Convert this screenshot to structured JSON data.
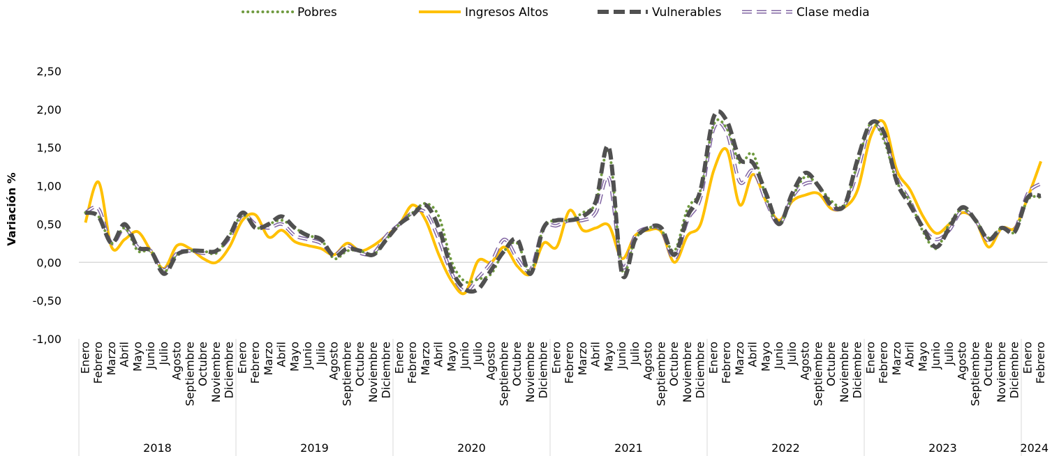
{
  "chart_data": {
    "type": "line",
    "y_label": "Variación %",
    "categories": [
      "Enero",
      "Febrero",
      "Marzo",
      "Abril",
      "Mayo",
      "Junio",
      "Julio",
      "Agosto",
      "Septiembre",
      "Octubre",
      "Noviembre",
      "Diciembre",
      "Enero",
      "Febrero",
      "Marzo",
      "Abril",
      "Mayo",
      "Junio",
      "Julio",
      "Agosto",
      "Septiembre",
      "Octubre",
      "Noviembre",
      "Diciembre",
      "Enero",
      "Febrero",
      "Marzo",
      "Abril",
      "Mayo",
      "Junio",
      "Julio",
      "Agosto",
      "Septiembre",
      "Octubre",
      "Noviembre",
      "Diciembre",
      "Enero",
      "Febrero",
      "Marzo",
      "Abril",
      "Mayo",
      "Junio",
      "Julio",
      "Agosto",
      "Septiembre",
      "Octubre",
      "Noviembre",
      "Diciembre",
      "Enero",
      "Febrero",
      "Marzo",
      "Abril",
      "Mayo",
      "Junio",
      "Julio",
      "Agosto",
      "Septiembre",
      "Octubre",
      "Noviembre",
      "Diciembre",
      "Enero",
      "Febrero",
      "Marzo",
      "Abril",
      "Mayo",
      "Junio",
      "Julio",
      "Agosto",
      "Septiembre",
      "Octubre",
      "Noviembre",
      "Diciembre",
      "Enero",
      "Febrero"
    ],
    "years": [
      "2018",
      "2019",
      "2020",
      "2021",
      "2022",
      "2023",
      "2024"
    ],
    "ylim": [
      -1,
      2.5
    ],
    "yticks": [
      {
        "value": -1,
        "label": "-1,00"
      },
      {
        "value": -0.5,
        "label": "-0,50"
      },
      {
        "value": 0,
        "label": "0,00"
      },
      {
        "value": 0.5,
        "label": "0,50"
      },
      {
        "value": 1,
        "label": "1,00"
      },
      {
        "value": 1.5,
        "label": "1,50"
      },
      {
        "value": 2,
        "label": "2,00"
      },
      {
        "value": 2.5,
        "label": "2,50"
      }
    ],
    "series": [
      {
        "name": "Pobres",
        "color": "#6f9a3f",
        "style": "dotted",
        "values": [
          0.65,
          0.6,
          0.25,
          0.45,
          0.15,
          0.15,
          -0.12,
          0.1,
          0.15,
          0.15,
          0.12,
          0.35,
          0.62,
          0.45,
          0.5,
          0.55,
          0.45,
          0.35,
          0.3,
          0.05,
          0.15,
          0.15,
          0.1,
          0.3,
          0.5,
          0.65,
          0.77,
          0.6,
          0.0,
          -0.25,
          -0.22,
          -0.15,
          0.15,
          0.25,
          -0.12,
          0.45,
          0.55,
          0.55,
          0.65,
          0.78,
          1.45,
          -0.1,
          0.3,
          0.45,
          0.42,
          0.15,
          0.7,
          0.95,
          1.8,
          1.75,
          1.3,
          1.42,
          0.85,
          0.5,
          0.85,
          1.12,
          1.0,
          0.8,
          0.75,
          1.3,
          1.82,
          1.6,
          1.05,
          0.8,
          0.4,
          0.18,
          0.5,
          0.7,
          0.55,
          0.32,
          0.45,
          0.4,
          0.82,
          0.85
        ]
      },
      {
        "name": "Ingresos Altos",
        "color": "#ffc000",
        "style": "solid",
        "values": [
          0.52,
          1.05,
          0.2,
          0.3,
          0.4,
          0.15,
          -0.08,
          0.22,
          0.18,
          0.05,
          0.0,
          0.2,
          0.55,
          0.62,
          0.33,
          0.42,
          0.27,
          0.22,
          0.18,
          0.1,
          0.25,
          0.15,
          0.22,
          0.35,
          0.5,
          0.75,
          0.55,
          0.1,
          -0.25,
          -0.4,
          0.02,
          0.0,
          0.2,
          -0.05,
          -0.15,
          0.25,
          0.2,
          0.68,
          0.42,
          0.45,
          0.48,
          0.05,
          0.35,
          0.42,
          0.4,
          0.0,
          0.35,
          0.5,
          1.2,
          1.47,
          0.75,
          1.15,
          0.8,
          0.55,
          0.8,
          0.88,
          0.9,
          0.7,
          0.72,
          0.95,
          1.65,
          1.83,
          1.2,
          0.95,
          0.6,
          0.38,
          0.5,
          0.65,
          0.55,
          0.2,
          0.45,
          0.45,
          0.85,
          1.32
        ]
      },
      {
        "name": "Vulnerables",
        "color": "#505050",
        "style": "dashed",
        "values": [
          0.65,
          0.6,
          0.25,
          0.5,
          0.2,
          0.15,
          -0.15,
          0.1,
          0.15,
          0.15,
          0.15,
          0.35,
          0.65,
          0.45,
          0.5,
          0.6,
          0.45,
          0.35,
          0.3,
          0.08,
          0.18,
          0.15,
          0.1,
          0.3,
          0.5,
          0.62,
          0.75,
          0.45,
          -0.1,
          -0.35,
          -0.35,
          -0.1,
          0.15,
          0.3,
          -0.15,
          0.45,
          0.55,
          0.55,
          0.6,
          0.8,
          1.5,
          -0.15,
          0.3,
          0.45,
          0.45,
          0.1,
          0.6,
          0.95,
          1.9,
          1.85,
          1.35,
          1.3,
          0.9,
          0.5,
          0.9,
          1.17,
          1.0,
          0.75,
          0.75,
          1.35,
          1.82,
          1.7,
          1.05,
          0.75,
          0.45,
          0.2,
          0.45,
          0.72,
          0.55,
          0.3,
          0.45,
          0.4,
          0.85,
          0.87
        ]
      },
      {
        "name": "Clase media",
        "color": "#8064a2",
        "style": "outline-dashed",
        "values": [
          0.65,
          0.7,
          0.25,
          0.45,
          0.2,
          0.15,
          -0.1,
          0.12,
          0.15,
          0.12,
          0.15,
          0.32,
          0.62,
          0.5,
          0.45,
          0.5,
          0.35,
          0.3,
          0.25,
          0.1,
          0.22,
          0.12,
          0.12,
          0.35,
          0.5,
          0.65,
          0.65,
          0.3,
          -0.15,
          -0.38,
          -0.2,
          0.0,
          0.3,
          0.05,
          -0.1,
          0.45,
          0.48,
          0.55,
          0.55,
          0.65,
          1.1,
          -0.05,
          0.35,
          0.45,
          0.42,
          0.05,
          0.55,
          0.85,
          1.75,
          1.7,
          1.05,
          1.2,
          0.8,
          0.5,
          0.85,
          1.03,
          1.0,
          0.72,
          0.75,
          1.2,
          1.78,
          1.65,
          1.1,
          0.8,
          0.45,
          0.3,
          0.42,
          0.68,
          0.55,
          0.28,
          0.45,
          0.43,
          0.9,
          1.03
        ]
      }
    ]
  }
}
